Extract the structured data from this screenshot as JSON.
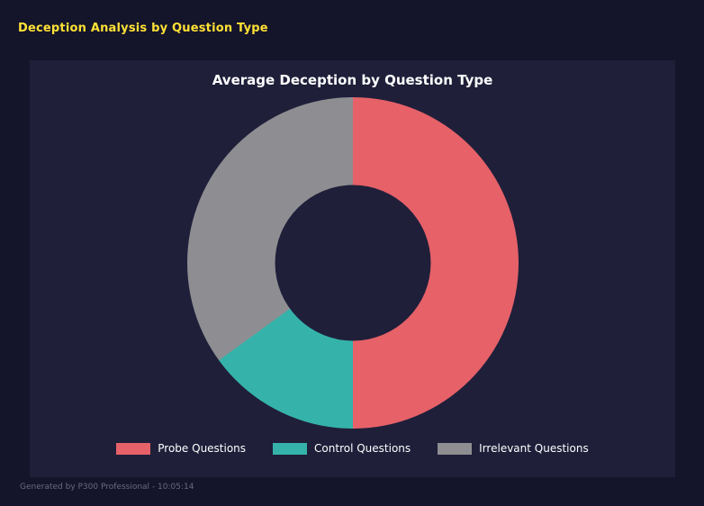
{
  "page": {
    "header": "Deception Analysis by Question Type",
    "footer": "Generated by P300 Professional - 10:05:14"
  },
  "colors": {
    "background": "#14142b",
    "panel": "#1f1f3a",
    "accent": "#ffe135",
    "text": "#ffffff",
    "muted": "#6b6b7d"
  },
  "chart_data": {
    "type": "pie",
    "subtype": "donut",
    "title": "Average Deception by Question Type",
    "labels": [
      "Probe Questions",
      "Control Questions",
      "Irrelevant Questions"
    ],
    "values": [
      50,
      15,
      35
    ],
    "unit": "percent (estimated share of ring)",
    "colors": [
      "#e66168",
      "#35b3aa",
      "#8e8e92"
    ],
    "start_angle": "12 o'clock",
    "direction": "clockwise",
    "hole_ratio": 0.47,
    "legend_position": "bottom",
    "grid": false
  }
}
